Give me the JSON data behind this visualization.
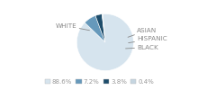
{
  "labels": [
    "WHITE",
    "HISPANIC",
    "ASIAN",
    "BLACK"
  ],
  "sizes": [
    88.6,
    7.2,
    3.8,
    0.4
  ],
  "colors": [
    "#d6e4ee",
    "#6699bb",
    "#1e4d6b",
    "#c5d5e0"
  ],
  "legend_labels": [
    "88.6%",
    "7.2%",
    "3.8%",
    "0.4%"
  ],
  "legend_colors": [
    "#d6e4ee",
    "#6699bb",
    "#1e4d6b",
    "#c5d5e0"
  ],
  "bg_color": "#ffffff",
  "text_color": "#999999",
  "label_color": "#888888",
  "font_size": 5.2,
  "legend_font_size": 5.0
}
